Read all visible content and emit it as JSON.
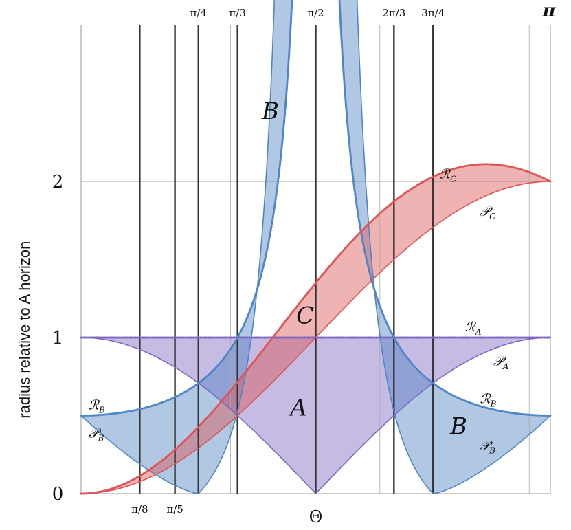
{
  "chart_data": {
    "type": "area",
    "xlabel": "Θ",
    "ylabel": "radius  relative to A horizon",
    "xlim": [
      0,
      3.14159
    ],
    "ylim": [
      0,
      3
    ],
    "x_ticks": [
      {
        "value": 0.3927,
        "label": "π/8",
        "position": "bottom"
      },
      {
        "value": 0.6283,
        "label": "π/5",
        "position": "bottom"
      },
      {
        "value": 0.7854,
        "label": "π/4",
        "position": "top"
      },
      {
        "value": 1.0472,
        "label": "π/3",
        "position": "top"
      },
      {
        "value": 1.5708,
        "label": "π/2",
        "position": "top"
      },
      {
        "value": 2.0944,
        "label": "2π/3",
        "position": "top"
      },
      {
        "value": 2.3562,
        "label": "3π/4",
        "position": "top"
      },
      {
        "value": 3.1416,
        "label": "π",
        "position": "top"
      }
    ],
    "y_ticks": [
      {
        "value": 0,
        "label": "0"
      },
      {
        "value": 1,
        "label": "1"
      },
      {
        "value": 2,
        "label": "2"
      }
    ],
    "thin_gridlines_x": [
      1.0,
      2.0,
      3.0
    ],
    "thin_gridlines_y": [
      2
    ],
    "regions": [
      {
        "name": "A",
        "color": "#7f68c2",
        "upper_label": "ℛ",
        "upper_sub": "A",
        "lower_label": "𝒫",
        "lower_sub": "A"
      },
      {
        "name": "B",
        "color": "#4f86c4",
        "upper_label": "ℛ",
        "upper_sub": "B",
        "lower_label": "𝒫",
        "lower_sub": "B"
      },
      {
        "name": "C",
        "color": "#dc5656",
        "upper_label": "ℛ",
        "upper_sub": "C",
        "lower_label": "𝒫",
        "lower_sub": "C"
      }
    ],
    "region_letters": [
      {
        "text": "A",
        "x": 1.4,
        "y": 0.5
      },
      {
        "text": "B",
        "x": 1.21,
        "y": 2.4
      },
      {
        "text": "B",
        "x": 2.47,
        "y": 0.38
      },
      {
        "text": "C",
        "x": 1.44,
        "y": 1.09
      }
    ],
    "curve_labels": [
      {
        "letter": "ℛ",
        "sub": "C",
        "x": 2.4,
        "y": 2.02
      },
      {
        "letter": "𝒫",
        "sub": "C",
        "x": 2.67,
        "y": 1.78
      },
      {
        "letter": "ℛ",
        "sub": "A",
        "x": 2.57,
        "y": 1.04
      },
      {
        "letter": "𝒫",
        "sub": "A",
        "x": 2.76,
        "y": 0.82
      },
      {
        "letter": "ℛ",
        "sub": "B",
        "x": 2.67,
        "y": 0.58
      },
      {
        "letter": "𝒫",
        "sub": "B",
        "x": 2.67,
        "y": 0.28
      },
      {
        "letter": "ℛ",
        "sub": "B",
        "x": 0.05,
        "y": 0.54
      },
      {
        "letter": "𝒫",
        "sub": "B",
        "x": 0.05,
        "y": 0.36
      }
    ],
    "grid": true,
    "legend": "none"
  }
}
